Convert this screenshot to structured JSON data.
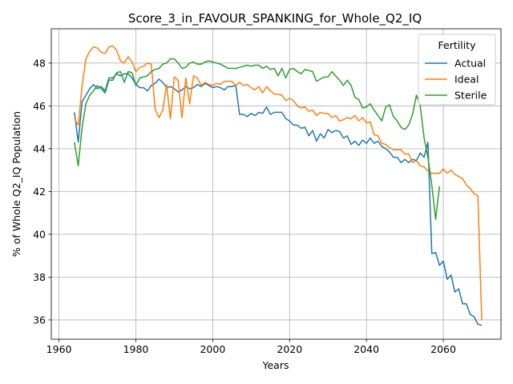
{
  "chart_data": {
    "type": "line",
    "title": "Score_3_in_FAVOUR_SPANKING_for_Whole_Q2_IQ",
    "xlabel": "Years",
    "ylabel": "% of Whole Q2_IQ Population",
    "xlim": [
      1958,
      2075
    ],
    "ylim": [
      35.1,
      49.6
    ],
    "xticks": [
      1960,
      1980,
      2000,
      2020,
      2040,
      2060
    ],
    "yticks": [
      36,
      38,
      40,
      42,
      44,
      46,
      48
    ],
    "grid": true,
    "legend": {
      "title": "Fertility",
      "position": "top-right"
    },
    "series": [
      {
        "name": "Actual",
        "color": "#1f77b4",
        "x": [
          1964,
          1965,
          1966,
          1967,
          1968,
          1969,
          1970,
          1971,
          1972,
          1973,
          1974,
          1975,
          1976,
          1977,
          1978,
          1979,
          1980,
          1981,
          1982,
          1983,
          1984,
          1985,
          1986,
          1987,
          1988,
          1989,
          1990,
          1991,
          1992,
          1993,
          1994,
          1995,
          1996,
          1997,
          1998,
          1999,
          2000,
          2001,
          2002,
          2003,
          2004,
          2005,
          2006,
          2007,
          2008,
          2009,
          2010,
          2011,
          2012,
          2013,
          2014,
          2015,
          2016,
          2017,
          2018,
          2019,
          2020,
          2021,
          2022,
          2023,
          2024,
          2025,
          2026,
          2027,
          2028,
          2029,
          2030,
          2031,
          2032,
          2033,
          2034,
          2035,
          2036,
          2037,
          2038,
          2039,
          2040,
          2041,
          2042,
          2043,
          2044,
          2045,
          2046,
          2047,
          2048,
          2049,
          2050,
          2051,
          2052,
          2053,
          2054,
          2055,
          2056,
          2057,
          2058,
          2059,
          2060,
          2061,
          2062,
          2063,
          2064,
          2065,
          2066,
          2067,
          2068,
          2069,
          2070
        ],
        "y": [
          45.7,
          44.3,
          46.2,
          46.5,
          46.8,
          47.0,
          46.8,
          46.9,
          46.7,
          47.3,
          47.3,
          47.5,
          47.4,
          47.5,
          47.5,
          47.3,
          47.0,
          46.85,
          46.85,
          46.7,
          46.95,
          47.05,
          47.25,
          47.1,
          46.85,
          46.9,
          46.8,
          46.65,
          46.75,
          46.9,
          46.8,
          46.85,
          47.0,
          46.9,
          47.05,
          46.95,
          46.85,
          46.9,
          46.85,
          46.75,
          46.9,
          46.9,
          46.95,
          45.6,
          45.6,
          45.5,
          45.65,
          45.55,
          45.7,
          45.65,
          45.95,
          45.6,
          45.7,
          45.7,
          45.7,
          45.4,
          45.3,
          45.1,
          45.1,
          44.95,
          45.0,
          44.6,
          44.85,
          44.35,
          44.7,
          44.5,
          44.9,
          44.75,
          44.85,
          44.8,
          44.5,
          44.6,
          44.2,
          44.35,
          44.15,
          44.4,
          44.25,
          44.5,
          44.25,
          44.35,
          44.1,
          44.0,
          43.85,
          43.6,
          43.6,
          43.35,
          43.5,
          43.35,
          43.5,
          43.45,
          43.8,
          43.6,
          44.3,
          39.1,
          39.15,
          38.55,
          38.75,
          37.9,
          38.1,
          37.3,
          37.45,
          36.75,
          36.75,
          36.25,
          36.15,
          35.8,
          35.75
        ]
      },
      {
        "name": "Ideal",
        "color": "#ff7f0e",
        "x": [
          1964,
          1965,
          1966,
          1967,
          1968,
          1969,
          1970,
          1971,
          1972,
          1973,
          1974,
          1975,
          1976,
          1977,
          1978,
          1979,
          1980,
          1981,
          1982,
          1983,
          1984,
          1985,
          1986,
          1987,
          1988,
          1989,
          1990,
          1991,
          1992,
          1993,
          1994,
          1995,
          1996,
          1997,
          1998,
          1999,
          2000,
          2001,
          2002,
          2003,
          2004,
          2005,
          2006,
          2007,
          2008,
          2009,
          2010,
          2011,
          2012,
          2013,
          2014,
          2015,
          2016,
          2017,
          2018,
          2019,
          2020,
          2021,
          2022,
          2023,
          2024,
          2025,
          2026,
          2027,
          2028,
          2029,
          2030,
          2031,
          2032,
          2033,
          2034,
          2035,
          2036,
          2037,
          2038,
          2039,
          2040,
          2041,
          2042,
          2043,
          2044,
          2045,
          2046,
          2047,
          2048,
          2049,
          2050,
          2051,
          2052,
          2053,
          2054,
          2055,
          2056,
          2057,
          2058,
          2059,
          2060,
          2061,
          2062,
          2063,
          2064,
          2065,
          2066,
          2067,
          2068,
          2069,
          2070
        ],
        "y": [
          45.4,
          45.1,
          46.9,
          48.2,
          48.55,
          48.75,
          48.7,
          48.5,
          48.45,
          48.75,
          48.8,
          48.6,
          48.1,
          48.0,
          48.3,
          48.05,
          47.6,
          47.8,
          47.85,
          48.0,
          47.95,
          45.85,
          45.45,
          45.8,
          47.0,
          45.4,
          47.35,
          47.2,
          45.45,
          47.3,
          46.1,
          47.4,
          47.3,
          46.95,
          47.1,
          47.0,
          46.95,
          47.05,
          47.0,
          47.15,
          47.15,
          47.15,
          46.95,
          47.1,
          46.95,
          47.0,
          46.85,
          46.75,
          46.9,
          46.6,
          46.9,
          46.7,
          46.55,
          46.55,
          46.5,
          46.25,
          46.35,
          46.25,
          46.0,
          45.9,
          45.95,
          45.75,
          45.8,
          45.55,
          45.7,
          45.65,
          45.65,
          45.45,
          45.55,
          45.3,
          45.35,
          45.45,
          45.4,
          45.55,
          45.3,
          45.45,
          45.2,
          45.25,
          44.65,
          44.6,
          44.25,
          44.2,
          44.05,
          43.95,
          43.95,
          43.95,
          43.75,
          43.75,
          43.35,
          43.45,
          43.2,
          43.15,
          42.95,
          42.85,
          42.85,
          42.85,
          43.05,
          42.85,
          43.0,
          42.8,
          42.7,
          42.6,
          42.3,
          42.15,
          41.9,
          41.8,
          36.0
        ]
      },
      {
        "name": "Sterile",
        "color": "#2ca02c",
        "x": [
          1964,
          1965,
          1966,
          1967,
          1968,
          1969,
          1970,
          1971,
          1972,
          1973,
          1974,
          1975,
          1976,
          1977,
          1978,
          1979,
          1980,
          1981,
          1982,
          1983,
          1984,
          1985,
          1986,
          1987,
          1988,
          1989,
          1990,
          1991,
          1992,
          1993,
          1994,
          1995,
          1996,
          1997,
          1998,
          1999,
          2000,
          2001,
          2002,
          2003,
          2004,
          2005,
          2006,
          2007,
          2008,
          2009,
          2010,
          2011,
          2012,
          2013,
          2014,
          2015,
          2016,
          2017,
          2018,
          2019,
          2020,
          2021,
          2022,
          2023,
          2024,
          2025,
          2026,
          2027,
          2028,
          2029,
          2030,
          2031,
          2032,
          2033,
          2034,
          2035,
          2036,
          2037,
          2038,
          2039,
          2040,
          2041,
          2042,
          2043,
          2044,
          2045,
          2046,
          2047,
          2048,
          2049,
          2050,
          2051,
          2052,
          2053,
          2054,
          2055,
          2056,
          2057,
          2058,
          2059
        ],
        "y": [
          44.3,
          43.2,
          45.0,
          46.1,
          46.5,
          46.7,
          46.95,
          46.8,
          46.6,
          47.2,
          47.2,
          47.55,
          47.6,
          47.1,
          47.6,
          47.55,
          46.95,
          47.3,
          47.35,
          47.4,
          47.6,
          47.7,
          47.75,
          47.95,
          48.0,
          48.2,
          48.2,
          48.0,
          47.75,
          47.8,
          48.0,
          48.05,
          47.95,
          47.95,
          48.05,
          48.1,
          48.05,
          48.0,
          47.95,
          47.85,
          47.75,
          47.75,
          47.75,
          47.8,
          47.85,
          47.9,
          47.85,
          47.9,
          47.9,
          47.75,
          47.85,
          47.7,
          47.75,
          47.4,
          47.75,
          47.3,
          47.7,
          47.75,
          47.6,
          47.5,
          47.7,
          47.65,
          47.6,
          47.15,
          47.25,
          47.35,
          47.35,
          47.6,
          47.4,
          47.2,
          46.95,
          47.2,
          46.95,
          46.4,
          46.3,
          45.9,
          45.95,
          46.1,
          45.8,
          45.55,
          45.3,
          45.95,
          46.05,
          45.5,
          45.3,
          45.0,
          44.9,
          45.1,
          45.6,
          46.5,
          46.0,
          44.5,
          43.6,
          42.3,
          40.7,
          42.25
        ]
      }
    ]
  }
}
